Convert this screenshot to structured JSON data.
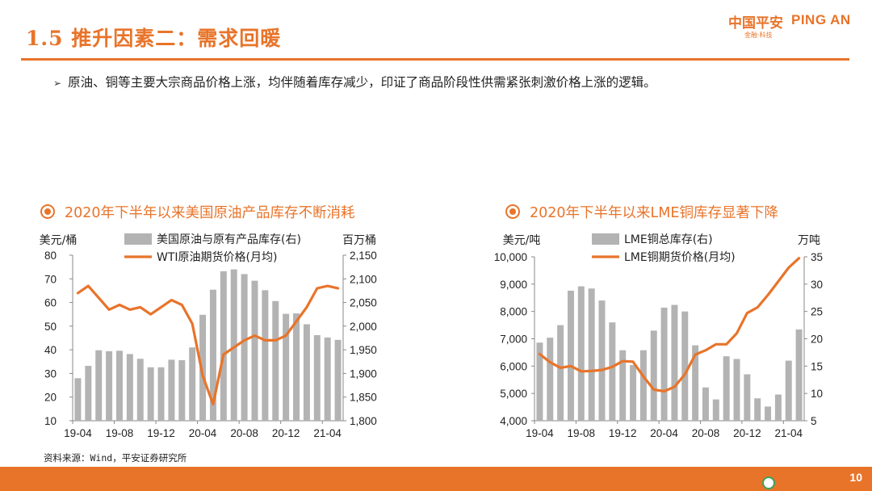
{
  "header": {
    "title": "1.5 推升因素二：需求回暖",
    "logo_cn": "中国平安",
    "logo_en": "PING AN",
    "logo_sub": "金融·科技"
  },
  "bullet": {
    "mark": "➢",
    "text": "原油、铜等主要大宗商品价格上涨，均伴随着库存减少，印证了商品阶段性供需紧张刺激价格上涨的逻辑。"
  },
  "colors": {
    "accent": "#e8742a",
    "bar": "#b3b3b3",
    "line": "#e8742a"
  },
  "chart_data": [
    {
      "type": "bar+line",
      "title": "2020年下半年以来美国原油产品库存不断消耗",
      "left_unit": "美元/桶",
      "right_unit": "百万桶",
      "bar_legend": "美国原油与原有产品库存(右)",
      "line_legend": "WTI原油期货价格(月均)",
      "x_tick_labels": [
        "19-04",
        "19-08",
        "19-12",
        "20-04",
        "20-08",
        "20-12",
        "21-04"
      ],
      "x_tick_index": [
        0,
        4,
        8,
        12,
        16,
        20,
        24
      ],
      "ylim_left": [
        10,
        80
      ],
      "yticks_left": [
        "80",
        "70",
        "60",
        "50",
        "40",
        "30",
        "20",
        "10"
      ],
      "ylim_right": [
        1800,
        2150
      ],
      "yticks_right": [
        "2,150",
        "2,100",
        "2,050",
        "2,000",
        "1,950",
        "1,900",
        "1,850",
        "1,800"
      ],
      "bars": [
        1890,
        1916,
        1949,
        1947,
        1948,
        1941,
        1931,
        1913,
        1913,
        1929,
        1928,
        1955,
        2024,
        2077,
        2116,
        2120,
        2110,
        2096,
        2076,
        2053,
        2026,
        2027,
        2004,
        1981,
        1976,
        1971
      ],
      "line": [
        64,
        67,
        62,
        57,
        59,
        57,
        58,
        55,
        58,
        61,
        59,
        51,
        29,
        17,
        38,
        41,
        44,
        46,
        44,
        44,
        46,
        52,
        58,
        66,
        67,
        66
      ]
    },
    {
      "type": "bar+line",
      "title": "2020年下半年以来LME铜库存显著下降",
      "left_unit": "美元/吨",
      "right_unit": "万吨",
      "bar_legend": "LME铜总库存(右)",
      "line_legend": "LME铜期货价格(月均)",
      "x_tick_labels": [
        "19-04",
        "19-08",
        "19-12",
        "20-04",
        "20-08",
        "20-12",
        "21-04"
      ],
      "x_tick_index": [
        0,
        4,
        8,
        12,
        16,
        20,
        24
      ],
      "ylim_left": [
        4000,
        10000
      ],
      "yticks_left": [
        "10,000",
        "9,000",
        "8,000",
        "7,000",
        "6,000",
        "5,000",
        "4,000"
      ],
      "ylim_right": [
        5,
        35
      ],
      "yticks_right": [
        "35",
        "30",
        "25",
        "20",
        "15",
        "10",
        "5"
      ],
      "bars": [
        19.3,
        20.2,
        22.5,
        28.8,
        29.6,
        29.2,
        27.0,
        23.0,
        17.9,
        15.2,
        17.9,
        21.5,
        25.7,
        26.2,
        25.0,
        18.8,
        11.1,
        8.9,
        16.8,
        16.3,
        13.5,
        9.1,
        7.6,
        9.8,
        16.0,
        21.7
      ],
      "line": [
        6440,
        6140,
        5940,
        6000,
        5810,
        5820,
        5860,
        5970,
        6180,
        6160,
        5620,
        5140,
        5080,
        5240,
        5700,
        6420,
        6580,
        6800,
        6800,
        7200,
        7940,
        8150,
        8600,
        9100,
        9600,
        9950
      ]
    }
  ],
  "source": "资料来源：Wind，平安证券研究所",
  "page_number": "10"
}
